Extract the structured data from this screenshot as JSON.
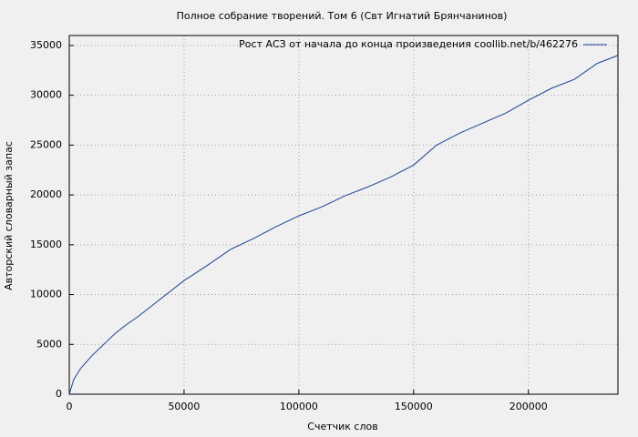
{
  "chart_data": {
    "type": "line",
    "title": "Полное собрание творений. Том 6 (Свт Игнатий Брянчанинов)",
    "x_label": "Счетчик слов",
    "y_label": "Авторский словарный запас",
    "x": [
      0,
      2000,
      5000,
      10000,
      15000,
      20000,
      25000,
      30000,
      40000,
      50000,
      60000,
      70000,
      80000,
      90000,
      100000,
      110000,
      120000,
      130000,
      140000,
      150000,
      160000,
      170000,
      180000,
      190000,
      200000,
      210000,
      220000,
      230000,
      239000
    ],
    "series": [
      {
        "name": "Рост АСЗ от начала до конца произведения coollib.net/b/462276",
        "color": "#1a3f9c",
        "values": [
          0,
          1500,
          2600,
          3900,
          5000,
          6100,
          7000,
          7800,
          9600,
          11400,
          12900,
          14500,
          15600,
          16800,
          17900,
          18800,
          19900,
          20800,
          21800,
          23000,
          25000,
          26200,
          27200,
          28200,
          29500,
          30700,
          31600,
          33200,
          34000
        ]
      }
    ],
    "xlim": [
      0,
      239000
    ],
    "ylim": [
      0,
      36000
    ],
    "xticks": [
      0,
      50000,
      100000,
      150000,
      200000
    ],
    "yticks": [
      0,
      5000,
      10000,
      15000,
      20000,
      25000,
      30000,
      35000
    ],
    "grid": true,
    "legend": "top-right"
  }
}
